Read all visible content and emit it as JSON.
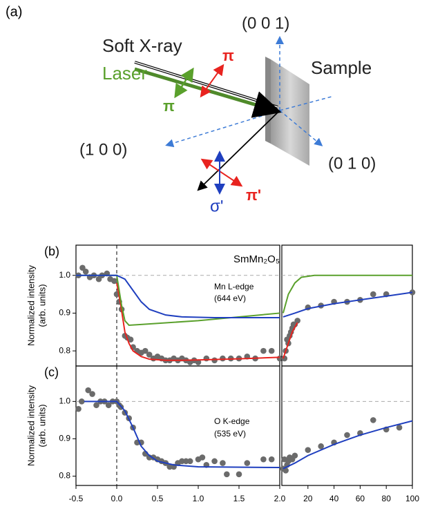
{
  "diagram": {
    "panel_label": "(a)",
    "z_axis": "(0 0 1)",
    "xray": "Soft X-ray",
    "laser": "Laser",
    "pi_red": "π",
    "pi_green": "π",
    "sample": "Sample",
    "x_axis": "(1 0 0)",
    "y_axis": "(0 1 0)",
    "sigma_out": "σ'",
    "pi_out": "π'"
  },
  "chart_data": [
    {
      "type": "line",
      "panel_label": "(b)",
      "ylabel": [
        "Normalized intensity",
        "(arb. units)"
      ],
      "annotations": [
        "SmMn₂O₅",
        "Mn L-edge",
        "(644 eV)"
      ],
      "xlim": [
        -0.5,
        2.0
      ],
      "ylim": [
        0.76,
        1.08
      ],
      "yticks": [
        0.8,
        0.9,
        {
          "value": 1,
          "label": "1.0"
        }
      ],
      "hline": 1,
      "vline": 0,
      "series": [
        {
          "type": "scatter",
          "color": "#6b6b6b",
          "x": [
            -0.47,
            -0.42,
            -0.38,
            -0.33,
            -0.28,
            -0.22,
            -0.18,
            -0.12,
            -0.08,
            -0.03,
            0,
            0.03,
            0.06,
            0.1,
            0.13,
            0.17,
            0.2,
            0.25,
            0.3,
            0.35,
            0.4,
            0.45,
            0.5,
            0.55,
            0.6,
            0.65,
            0.7,
            0.75,
            0.8,
            0.85,
            0.9,
            0.95,
            1,
            1.1,
            1.2,
            1.3,
            1.4,
            1.5,
            1.6,
            1.7,
            1.8,
            1.9,
            2
          ],
          "values": [
            1,
            1.02,
            1.01,
            0.995,
            1,
            0.99,
            1,
            1.005,
            0.99,
            0.985,
            0.95,
            0.93,
            0.91,
            0.84,
            0.835,
            0.83,
            0.81,
            0.8,
            0.795,
            0.8,
            0.79,
            0.78,
            0.785,
            0.78,
            0.775,
            0.775,
            0.78,
            0.775,
            0.78,
            0.775,
            0.77,
            0.775,
            0.77,
            0.78,
            0.775,
            0.78,
            0.78,
            0.78,
            0.785,
            0.78,
            0.8,
            0.8,
            0.78
          ]
        },
        {
          "type": "line",
          "color": "#e8231f",
          "x": [
            0,
            0.05,
            0.1,
            0.15,
            0.2,
            0.3,
            0.4,
            0.6,
            0.8,
            1,
            1.5,
            2
          ],
          "values": [
            0.98,
            0.92,
            0.85,
            0.82,
            0.8,
            0.785,
            0.778,
            0.775,
            0.775,
            0.776,
            0.779,
            0.783
          ]
        },
        {
          "type": "line",
          "color": "#5aa02c",
          "x": [
            -0.5,
            0,
            0.03,
            0.06,
            0.1,
            0.15,
            0.3,
            1,
            2
          ],
          "values": [
            1,
            1,
            0.96,
            0.92,
            0.88,
            0.868,
            0.87,
            0.88,
            0.9
          ]
        },
        {
          "type": "line",
          "color": "#1f3fbf",
          "x": [
            -0.5,
            0,
            0.1,
            0.2,
            0.3,
            0.4,
            0.6,
            0.8,
            1.2,
            2
          ],
          "values": [
            1,
            1,
            0.99,
            0.96,
            0.93,
            0.91,
            0.895,
            0.89,
            0.888,
            0.888
          ]
        }
      ]
    },
    {
      "type": "line",
      "xlim": [
        0,
        100
      ],
      "ylim": [
        0.76,
        1.08
      ],
      "hline": 1,
      "series": [
        {
          "type": "scatter",
          "color": "#6b6b6b",
          "x": [
            2,
            3,
            4,
            5,
            6,
            7,
            8,
            9,
            10,
            12,
            20,
            30,
            40,
            50,
            60,
            70,
            80,
            100
          ],
          "values": [
            0.78,
            0.8,
            0.83,
            0.82,
            0.84,
            0.85,
            0.86,
            0.87,
            0.87,
            0.88,
            0.915,
            0.92,
            0.93,
            0.93,
            0.935,
            0.95,
            0.95,
            0.955
          ]
        },
        {
          "type": "line",
          "color": "#e8231f",
          "x": [
            1,
            3,
            5,
            8,
            12
          ],
          "values": [
            0.78,
            0.8,
            0.82,
            0.85,
            0.875
          ]
        },
        {
          "type": "line",
          "color": "#5aa02c",
          "x": [
            1,
            5,
            10,
            15,
            25,
            100
          ],
          "values": [
            0.9,
            0.95,
            0.98,
            0.995,
            1,
            1
          ]
        },
        {
          "type": "line",
          "color": "#1f3fbf",
          "x": [
            1,
            10,
            20,
            40,
            60,
            80,
            100
          ],
          "values": [
            0.89,
            0.9,
            0.912,
            0.925,
            0.935,
            0.945,
            0.955
          ]
        }
      ]
    },
    {
      "type": "line",
      "panel_label": "(c)",
      "ylabel": [
        "Normalized intensity",
        "(arb. units)"
      ],
      "annotations": [
        "O K-edge",
        "(535 eV)"
      ],
      "xlim": [
        -0.5,
        2.0
      ],
      "ylim": [
        0.775,
        1.095
      ],
      "xticks": [
        -0.5,
        {
          "value": 0,
          "label": "0.0"
        },
        0.5,
        {
          "value": 1,
          "label": "1.0"
        },
        1.5,
        {
          "value": 2,
          "label": "2.0"
        }
      ],
      "yticks": [
        0.8,
        0.9,
        {
          "value": 1,
          "label": "1.0"
        }
      ],
      "hline": 1,
      "vline": 0,
      "series": [
        {
          "type": "scatter",
          "color": "#6b6b6b",
          "x": [
            -0.47,
            -0.43,
            -0.35,
            -0.3,
            -0.25,
            -0.2,
            -0.15,
            -0.1,
            -0.05,
            0,
            0.03,
            0.05,
            0.1,
            0.15,
            0.2,
            0.25,
            0.3,
            0.35,
            0.4,
            0.45,
            0.5,
            0.55,
            0.6,
            0.65,
            0.7,
            0.75,
            0.8,
            0.85,
            0.9,
            1,
            1.05,
            1.1,
            1.2,
            1.3,
            1.35,
            1.5,
            1.6,
            1.8,
            1.9
          ],
          "values": [
            0.98,
            1,
            1.03,
            1.02,
            0.99,
            1,
            1,
            0.99,
            1,
            1,
            0.99,
            0.985,
            0.97,
            0.955,
            0.93,
            0.89,
            0.89,
            0.86,
            0.85,
            0.85,
            0.845,
            0.84,
            0.835,
            0.825,
            0.825,
            0.835,
            0.84,
            0.84,
            0.84,
            0.845,
            0.85,
            0.83,
            0.84,
            0.835,
            0.805,
            0.805,
            0.835,
            0.845,
            0.845
          ]
        },
        {
          "type": "line",
          "color": "#1f3fbf",
          "x": [
            -0.4,
            0,
            0.1,
            0.2,
            0.3,
            0.4,
            0.5,
            0.7,
            1,
            2
          ],
          "values": [
            1,
            1,
            0.975,
            0.93,
            0.88,
            0.855,
            0.84,
            0.83,
            0.825,
            0.823
          ]
        }
      ]
    },
    {
      "type": "line",
      "xlim": [
        0,
        100
      ],
      "ylim": [
        0.775,
        1.095
      ],
      "xticks": [
        20,
        40,
        60,
        80,
        100
      ],
      "hline": 1,
      "series": [
        {
          "type": "scatter",
          "color": "#6b6b6b",
          "x": [
            1,
            2,
            3,
            4,
            5,
            6,
            8,
            10,
            20,
            30,
            40,
            50,
            60,
            70,
            80,
            90
          ],
          "values": [
            0.82,
            0.845,
            0.815,
            0.83,
            0.84,
            0.85,
            0.845,
            0.855,
            0.87,
            0.88,
            0.89,
            0.91,
            0.915,
            0.95,
            0.925,
            0.93
          ]
        },
        {
          "type": "line",
          "color": "#1f3fbf",
          "x": [
            1,
            10,
            20,
            40,
            60,
            80,
            100
          ],
          "values": [
            0.82,
            0.835,
            0.855,
            0.885,
            0.91,
            0.93,
            0.948
          ]
        }
      ]
    }
  ]
}
